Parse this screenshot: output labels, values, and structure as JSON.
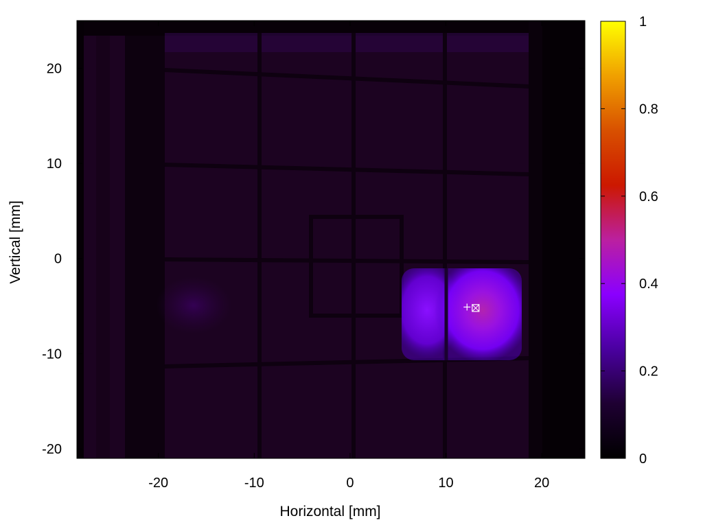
{
  "chart_data": {
    "type": "heatmap",
    "title": "",
    "xlabel": "Horizontal [mm]",
    "ylabel": "Vertical [mm]",
    "xlim": [
      -28.5,
      24.5
    ],
    "ylim": [
      -21,
      25
    ],
    "xticks": [
      -20,
      -10,
      0,
      10,
      20
    ],
    "yticks": [
      -20,
      -10,
      0,
      10,
      20
    ],
    "colorbar": {
      "range": [
        0,
        1
      ],
      "ticks": [
        0,
        0.2,
        0.4,
        0.6,
        0.8,
        1
      ],
      "tick_labels": [
        "0",
        "0.2",
        "0.4",
        "0.6",
        "0.8",
        "1"
      ],
      "colormap": "gnuplot",
      "stops": [
        "#000000",
        "#1e0032",
        "#4a00a0",
        "#8a00ff",
        "#bb20a0",
        "#cc1800",
        "#d85000",
        "#f0a000",
        "#ffff00"
      ]
    },
    "background_level": 0.03,
    "hotspot": {
      "x_range": [
        5,
        17
      ],
      "y_range": [
        -9.5,
        -1
      ],
      "center": [
        13,
        -5.2
      ],
      "peak_value": 0.4,
      "shoulder_peak_value": 0.25
    },
    "markers": [
      {
        "symbol": "plus",
        "x": 12.2,
        "y": -5.1
      },
      {
        "symbol": "square-x",
        "x": 13.1,
        "y": -5.2
      }
    ]
  }
}
